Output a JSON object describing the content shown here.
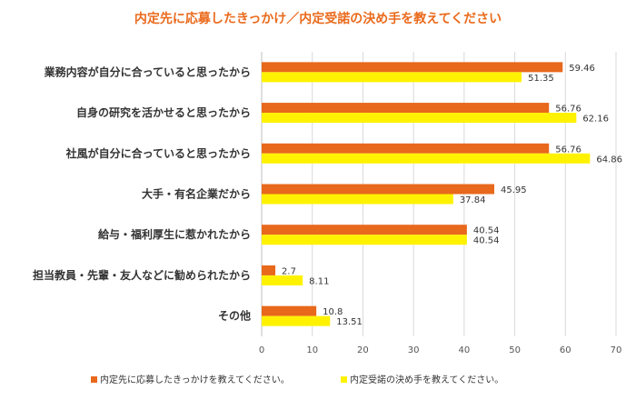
{
  "chart_data": {
    "type": "bar",
    "orientation": "horizontal",
    "title": "内定先に応募したきっかけ／内定受諾の決め手を教えてください",
    "categories": [
      "業務内容が自分に合っていると思ったから",
      "自身の研究を活かせると思ったから",
      "社風が自分に合っていると思ったから",
      "大手・有名企業だから",
      "給与・福利厚生に惹かれたから",
      "担当教員・先輩・友人などに勧められたから",
      "その他"
    ],
    "series": [
      {
        "name": "内定先に応募したきっかけを教えてください。",
        "color": "#e8681c",
        "values": [
          59.46,
          56.76,
          56.76,
          45.95,
          40.54,
          2.7,
          10.8
        ],
        "labels": [
          "59.46",
          "56.76",
          "56.76",
          "45.95",
          "40.54",
          "2.7",
          "10.8"
        ]
      },
      {
        "name": "内定受諾の決め手を教えてください。",
        "color": "#fff200",
        "values": [
          51.35,
          62.16,
          64.86,
          37.84,
          40.54,
          8.11,
          13.51
        ],
        "labels": [
          "51.35",
          "62.16",
          "64.86",
          "37.84",
          "40.54",
          "8.11",
          "13.51"
        ]
      }
    ],
    "xlim": [
      0,
      70
    ],
    "xticks": [
      "0",
      "10",
      "20",
      "30",
      "40",
      "50",
      "60",
      "70"
    ],
    "grid": true,
    "legend": "bottom"
  }
}
